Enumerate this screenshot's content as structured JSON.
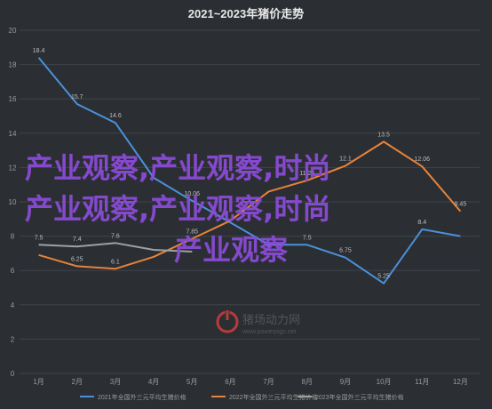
{
  "chart_data": {
    "type": "line",
    "title": "2021~2023年猪价走势",
    "categories": [
      "1月",
      "2月",
      "3月",
      "4月",
      "5月",
      "6月",
      "7月",
      "8月",
      "9月",
      "10月",
      "11月",
      "12月"
    ],
    "ylim": [
      0,
      20
    ],
    "yticks": [
      0,
      2,
      4,
      6,
      8,
      10,
      12,
      14,
      16,
      18,
      20
    ],
    "grid": true,
    "legend_position": "bottom",
    "series": [
      {
        "name": "2021年全国外三元平均生猪价格",
        "color": "#4a90d9",
        "values": [
          18.4,
          15.7,
          14.6,
          11.4,
          10.06,
          8.8,
          7.5,
          7.5,
          6.75,
          5.25,
          8.4,
          8.0
        ],
        "labels": [
          "18.4",
          "15.7",
          "14.6",
          "",
          "10.06",
          "",
          "",
          "7.5",
          "6.75",
          "5.25",
          "8.4",
          ""
        ]
      },
      {
        "name": "2022年全国外三元平均生猪价格",
        "color": "#e8823a",
        "values": [
          6.9,
          6.25,
          6.1,
          6.8,
          7.85,
          8.9,
          10.6,
          11.25,
          12.1,
          13.5,
          12.06,
          9.45
        ],
        "labels": [
          "",
          "6.25",
          "6.1",
          "",
          "7.85",
          "",
          "",
          "11.25",
          "12.1",
          "13.5",
          "12.06",
          "9.45"
        ]
      },
      {
        "name": "2023年全国外三元平均生猪价格",
        "color": "#a0a0a0",
        "values": [
          7.5,
          7.4,
          7.6,
          7.2,
          7.1,
          null,
          null,
          null,
          null,
          null,
          null,
          null
        ],
        "labels": [
          "7.5",
          "7.4",
          "7.6",
          "",
          "",
          "",
          "",
          "",
          "",
          "",
          "",
          ""
        ]
      }
    ]
  },
  "watermark": {
    "lines": [
      "产业观察,产业观察,时尚",
      "产业观察,产业观察,时尚",
      "产业观察"
    ]
  },
  "logo": {
    "name": "猪场动力网",
    "url": "www.powerpigs.net"
  }
}
